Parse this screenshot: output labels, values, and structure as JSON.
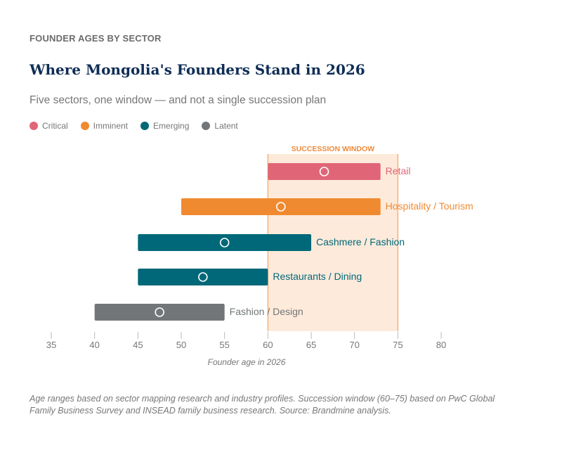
{
  "kicker": "FOUNDER AGES BY SECTOR",
  "title": "Where Mongolia's Founders Stand in 2026",
  "subtitle": "Five sectors, one window — and not a single succession plan",
  "legend": [
    {
      "label": "Critical",
      "color": "#e06677"
    },
    {
      "label": "Imminent",
      "color": "#f08a30"
    },
    {
      "label": "Emerging",
      "color": "#006878"
    },
    {
      "label": "Latent",
      "color": "#727678"
    }
  ],
  "chart_data": {
    "type": "range-bar",
    "xlabel": "Founder age in 2026",
    "xlim": [
      35,
      80
    ],
    "xticks": [
      35,
      40,
      45,
      50,
      55,
      60,
      65,
      70,
      75,
      80
    ],
    "grid": false,
    "highlight_band": {
      "label": "SUCCESSION WINDOW",
      "range": [
        60,
        75
      ],
      "color": "#fdeadb",
      "border_color": "#f5a35f",
      "label_color": "#ee8a3a"
    },
    "series": [
      {
        "name": "Retail",
        "category": "Critical",
        "min": 60,
        "max": 73,
        "median": 66.5,
        "color": "#e06677"
      },
      {
        "name": "Hospitality / Tourism",
        "category": "Imminent",
        "min": 50,
        "max": 73,
        "median": 61.5,
        "color": "#f08a30"
      },
      {
        "name": "Cashmere / Fashion",
        "category": "Emerging",
        "min": 45,
        "max": 65,
        "median": 55,
        "color": "#006878"
      },
      {
        "name": "Restaurants / Dining",
        "category": "Emerging",
        "min": 45,
        "max": 60,
        "median": 52.5,
        "color": "#006878"
      },
      {
        "name": "Fashion / Design",
        "category": "Latent",
        "min": 40,
        "max": 55,
        "median": 47.5,
        "color": "#727678"
      }
    ]
  },
  "footnote": "Age ranges based on sector mapping research and industry profiles. Succession window (60–75) based on PwC Global Family Business Survey and INSEAD family business research. Source: Brandmine analysis."
}
